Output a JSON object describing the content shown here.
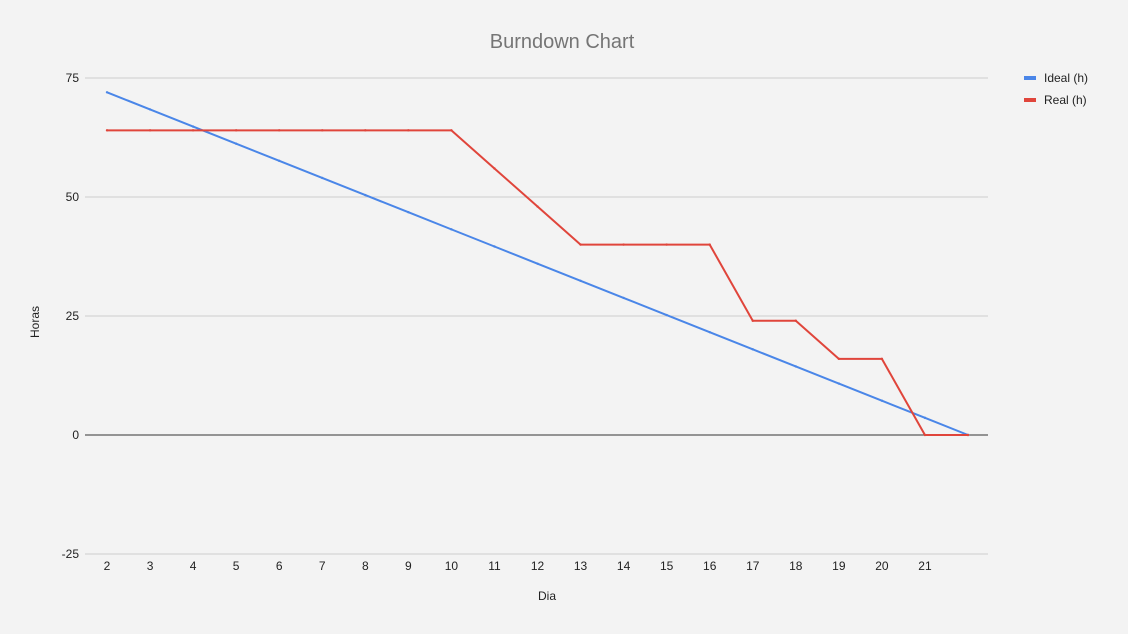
{
  "chart_data": {
    "type": "line",
    "title": "Burndown Chart",
    "xlabel": "Dia",
    "ylabel": "Horas",
    "ylim": [
      -25,
      75
    ],
    "yticks": [
      75,
      50,
      25,
      0,
      -25
    ],
    "categories": [
      "2",
      "3",
      "4",
      "5",
      "6",
      "7",
      "8",
      "9",
      "10",
      "11",
      "12",
      "13",
      "14",
      "15",
      "16",
      "17",
      "18",
      "19",
      "20",
      "21",
      ""
    ],
    "grid": true,
    "legend_position": "right",
    "series": [
      {
        "name": "Ideal (h)",
        "color": "#4a86e8",
        "values": [
          72,
          68.4,
          64.8,
          61.2,
          57.6,
          54,
          50.4,
          46.8,
          43.2,
          39.6,
          36,
          32.4,
          28.8,
          25.2,
          21.6,
          18,
          14.4,
          10.8,
          7.2,
          3.6,
          0
        ]
      },
      {
        "name": "Real (h)",
        "color": "#e0453b",
        "values": [
          64,
          64,
          64,
          64,
          64,
          64,
          64,
          64,
          64,
          56,
          48,
          40,
          40,
          40,
          40,
          24,
          24,
          16,
          16,
          0,
          0
        ]
      }
    ]
  }
}
